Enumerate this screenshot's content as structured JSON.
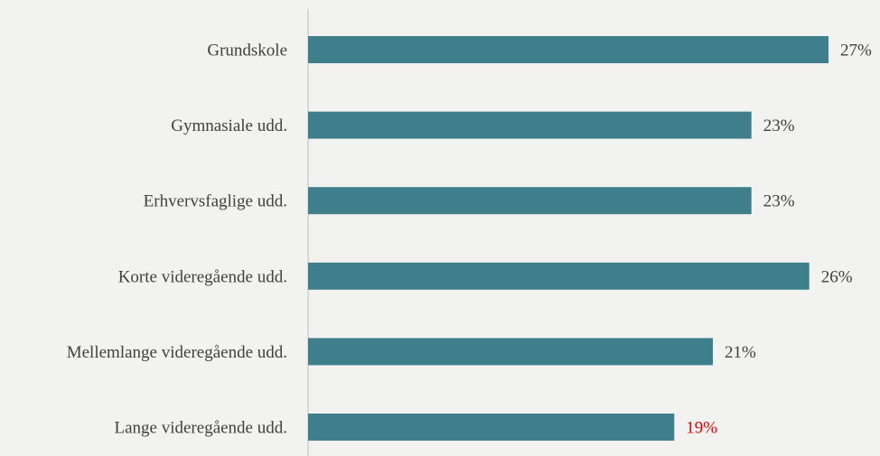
{
  "chart_data": {
    "type": "bar",
    "orientation": "horizontal",
    "categories": [
      "Grundskole",
      "Gymnasiale udd.",
      "Erhvervsfaglige udd.",
      "Korte videregående udd.",
      "Mellemlange videregående udd.",
      "Lange videregående udd."
    ],
    "values": [
      27,
      23,
      23,
      26,
      21,
      19
    ],
    "value_labels": [
      "27%",
      "23%",
      "23%",
      "26%",
      "21%",
      "19%"
    ],
    "value_unit": "%",
    "xlim": [
      0,
      27
    ],
    "grid": false,
    "legend": "none",
    "colors": {
      "bar": "#3e7f8b",
      "axis": "#d0d0d0",
      "label": "#404040",
      "highlight_label": "#e00000"
    },
    "highlight_index": 5
  }
}
